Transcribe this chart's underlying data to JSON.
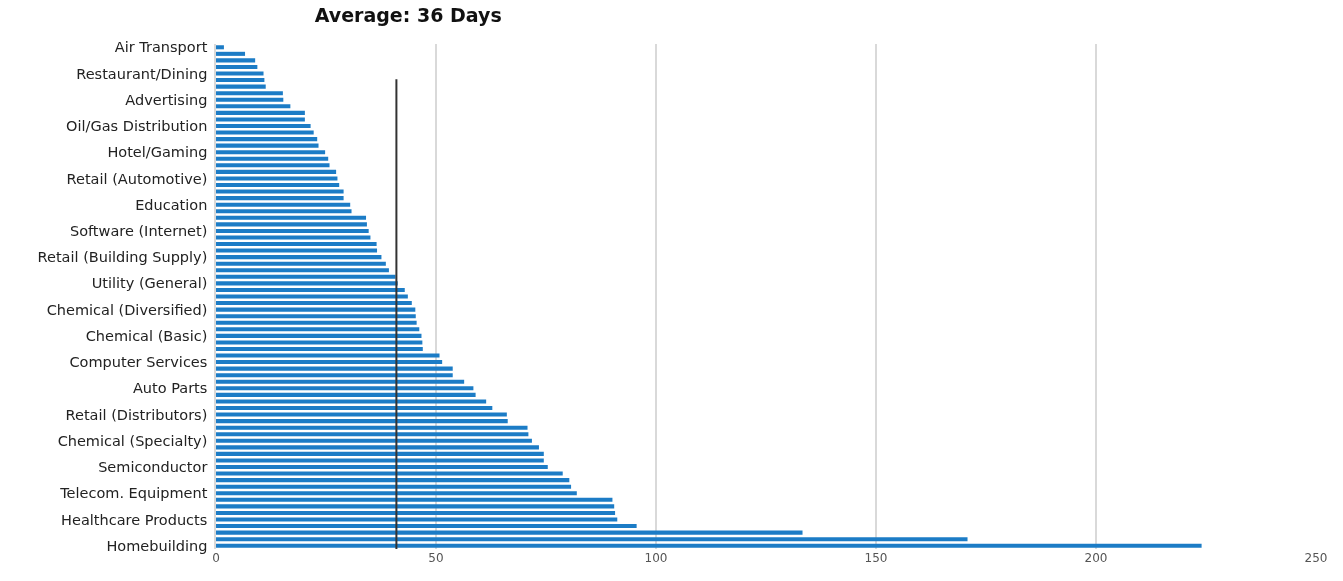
{
  "chart_data": {
    "type": "bar",
    "orientation": "horizontal",
    "title": "Average: 36 Days",
    "categories": [
      "Air Transport",
      null,
      null,
      null,
      "Restaurant/Dining",
      null,
      null,
      null,
      "Advertising",
      null,
      null,
      null,
      "Oil/Gas Distribution",
      null,
      null,
      null,
      "Hotel/Gaming",
      null,
      null,
      null,
      "Retail (Automotive)",
      null,
      null,
      null,
      "Education",
      null,
      null,
      null,
      "Software (Internet)",
      null,
      null,
      null,
      "Retail (Building Supply)",
      null,
      null,
      null,
      "Utility (General)",
      null,
      null,
      null,
      "Chemical (Diversified)",
      null,
      null,
      null,
      "Chemical (Basic)",
      null,
      null,
      null,
      "Computer Services",
      null,
      null,
      null,
      "Auto Parts",
      null,
      null,
      null,
      "Retail (Distributors)",
      null,
      null,
      null,
      "Chemical (Specialty)",
      null,
      null,
      null,
      "Semiconductor",
      null,
      null,
      null,
      "Telecom. Equipment",
      null,
      null,
      null,
      "Healthcare Products",
      null,
      null,
      null,
      "Homebuilding"
    ],
    "values": [
      1.8,
      6.6,
      8.9,
      9.4,
      10.8,
      11.0,
      11.3,
      15.2,
      15.3,
      16.9,
      20.2,
      20.2,
      21.5,
      22.2,
      23.0,
      23.3,
      24.8,
      25.5,
      25.8,
      27.3,
      27.6,
      28.0,
      29.0,
      29.0,
      30.5,
      30.8,
      34.1,
      34.3,
      34.7,
      35.1,
      36.5,
      36.6,
      37.6,
      38.6,
      39.3,
      40.8,
      41.3,
      42.9,
      43.6,
      44.5,
      45.3,
      45.4,
      45.6,
      46.2,
      46.7,
      46.9,
      47.0,
      50.8,
      51.4,
      53.8,
      53.8,
      56.4,
      58.5,
      59.0,
      61.4,
      62.8,
      66.1,
      66.3,
      70.8,
      71.0,
      71.8,
      73.4,
      74.5,
      74.5,
      75.4,
      78.8,
      80.3,
      80.7,
      82.0,
      90.1,
      90.5,
      90.7,
      91.2,
      95.6,
      133.3,
      170.8,
      224.0
    ],
    "color": "#1c7cc6",
    "xlim": [
      0,
      250
    ],
    "xticks": [
      0,
      50,
      100,
      150,
      200,
      250
    ],
    "grid": "x",
    "ref_lines": [
      {
        "axis": "x",
        "value": 41,
        "color": "#333333"
      }
    ]
  }
}
